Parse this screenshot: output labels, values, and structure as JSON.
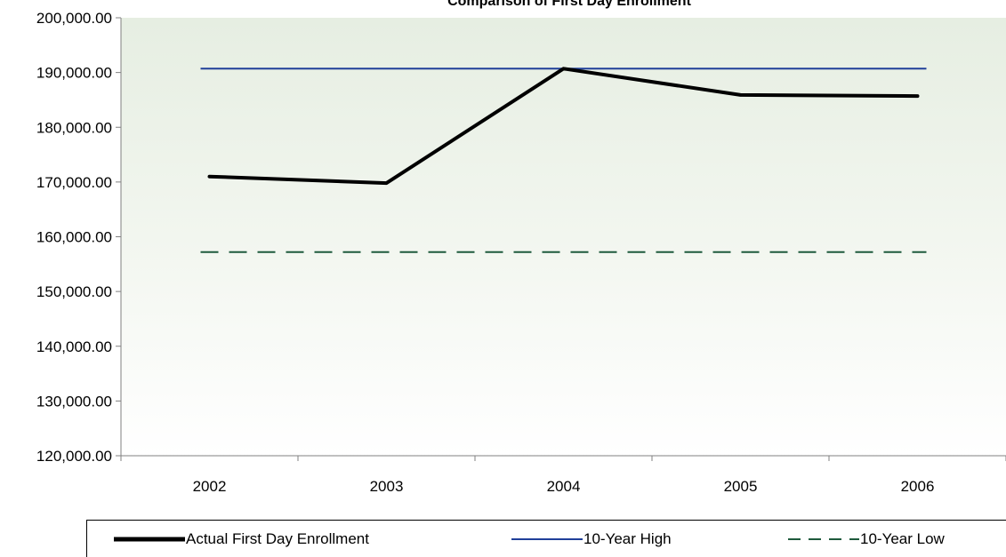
{
  "chart_data": {
    "type": "line",
    "title": "Comparison of First Day Enrollment",
    "xlabel": "",
    "ylabel": "",
    "categories": [
      "2002",
      "2003",
      "2004",
      "2005",
      "2006"
    ],
    "ylim": [
      120000,
      200000
    ],
    "y_ticks": [
      "120,000.00",
      "130,000.00",
      "140,000.00",
      "150,000.00",
      "160,000.00",
      "170,000.00",
      "180,000.00",
      "190,000.00",
      "200,000.00"
    ],
    "series": [
      {
        "name": "Actual First Day Enrollment",
        "values": [
          171000,
          169800,
          190700,
          185900,
          185700
        ],
        "color": "#000000",
        "style": "solid-thick"
      },
      {
        "name": "10-Year High",
        "values": [
          190700,
          190700,
          190700,
          190700,
          190700
        ],
        "color": "#1f3f99",
        "style": "solid-thin"
      },
      {
        "name": "10-Year Low",
        "values": [
          157200,
          157200,
          157200,
          157200,
          157200
        ],
        "color": "#1e5a3c",
        "style": "dashed"
      }
    ],
    "grid": false,
    "legend_position": "bottom",
    "plot_background": "#eef3ea"
  }
}
